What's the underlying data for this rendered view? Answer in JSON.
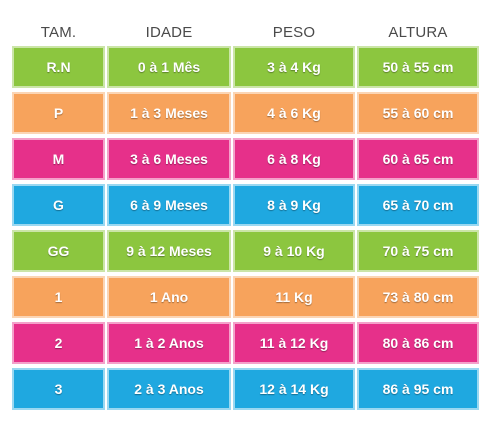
{
  "headers": [
    "TAM.",
    "IDADE",
    "PESO",
    "ALTURA"
  ],
  "rows": [
    {
      "tam": "R.N",
      "idade": "0 à 1 Mês",
      "peso": "3 à 4 Kg",
      "altura": "50 à 55 cm",
      "color": "#8cc63f"
    },
    {
      "tam": "P",
      "idade": "1 à 3 Meses",
      "peso": "4 à 6 Kg",
      "altura": "55 à 60 cm",
      "color": "#f7a35c"
    },
    {
      "tam": "M",
      "idade": "3 à 6 Meses",
      "peso": "6 à 8 Kg",
      "altura": "60 à 65 cm",
      "color": "#e6308a"
    },
    {
      "tam": "G",
      "idade": "6 à 9 Meses",
      "peso": "8 à 9 Kg",
      "altura": "65 à 70 cm",
      "color": "#1fa8e0"
    },
    {
      "tam": "GG",
      "idade": "9 à 12 Meses",
      "peso": "9 à 10 Kg",
      "altura": "70 à 75 cm",
      "color": "#8cc63f"
    },
    {
      "tam": "1",
      "idade": "1 Ano",
      "peso": "11 Kg",
      "altura": "73 à 80 cm",
      "color": "#f7a35c"
    },
    {
      "tam": "2",
      "idade": "1 à 2 Anos",
      "peso": "11 à 12 Kg",
      "altura": "80 à 86 cm",
      "color": "#e6308a"
    },
    {
      "tam": "3",
      "idade": "2 à 3 Anos",
      "peso": "12 à 14 Kg",
      "altura": "86 à 95 cm",
      "color": "#1fa8e0"
    }
  ]
}
